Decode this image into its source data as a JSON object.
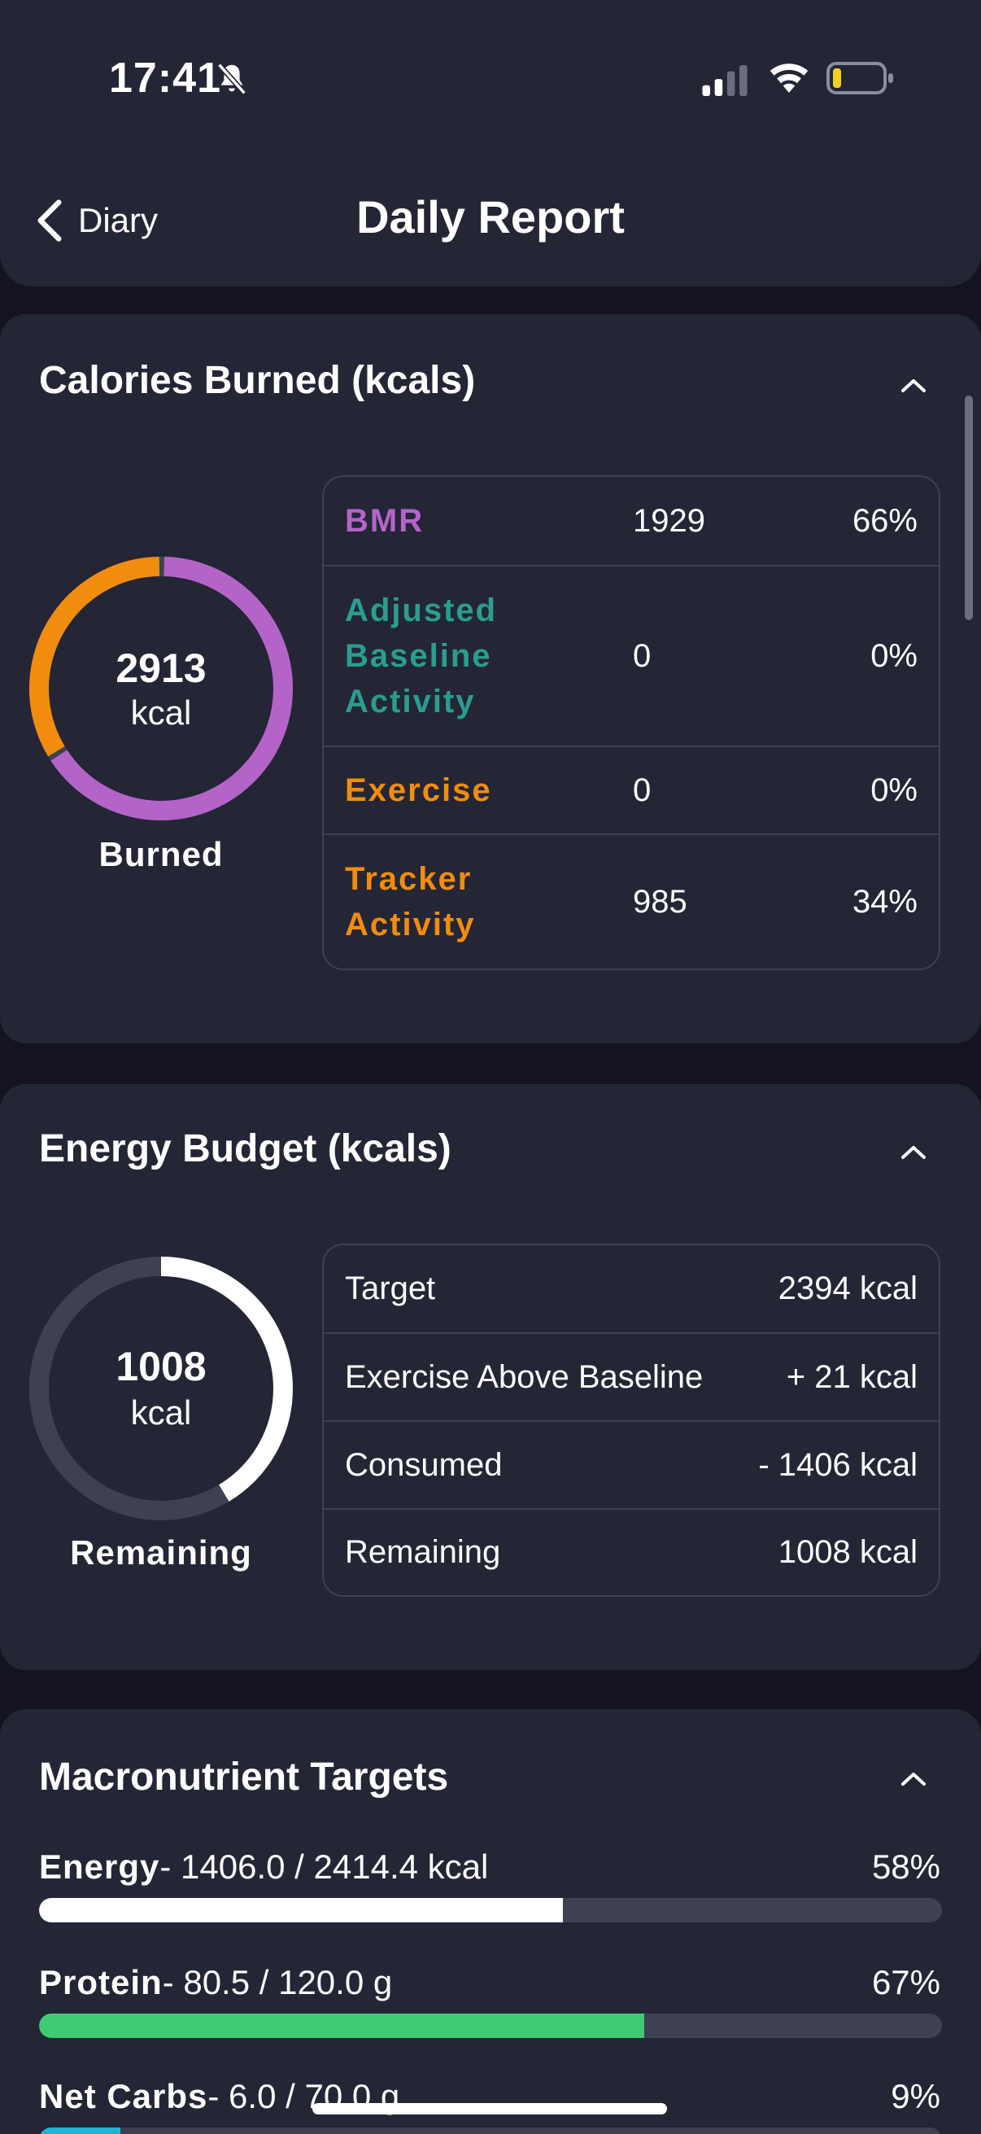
{
  "status_bar": {
    "time": "17:41",
    "bell_icon": "bell-slash-icon",
    "signal_icon": "signal-icon",
    "wifi_icon": "wifi-icon",
    "battery_icon": "battery-low-icon"
  },
  "nav": {
    "back_label": "Diary",
    "title": "Daily Report"
  },
  "calories_burned": {
    "title": "Calories Burned (kcals)",
    "donut": {
      "value": "2913",
      "unit": "kcal",
      "label": "Burned",
      "segments": [
        {
          "name": "BMR",
          "fraction": 0.66,
          "color": "#b464c8"
        },
        {
          "name": "Tracker Activity",
          "fraction": 0.34,
          "color": "#f28c0f"
        }
      ]
    },
    "rows": [
      {
        "name": "BMR",
        "value": "1929",
        "pct": "66%",
        "color": "#b464c8"
      },
      {
        "name": "Adjusted Baseline Activity",
        "value": "0",
        "pct": "0%",
        "color": "#2a9d8f"
      },
      {
        "name": "Exercise",
        "value": "0",
        "pct": "0%",
        "color": "#f28c0f"
      },
      {
        "name": "Tracker Activity",
        "value": "985",
        "pct": "34%",
        "color": "#f28c0f"
      }
    ]
  },
  "energy_budget": {
    "title": "Energy Budget (kcals)",
    "donut": {
      "value": "1008",
      "unit": "kcal",
      "label": "Remaining",
      "remaining_fraction": 0.42
    },
    "rows": [
      {
        "name": "Target",
        "value": "2394 kcal"
      },
      {
        "name": "Exercise Above Baseline",
        "value": "+ 21 kcal"
      },
      {
        "name": "Consumed",
        "value": "- 1406 kcal"
      },
      {
        "name": "Remaining",
        "value": "1008 kcal"
      }
    ]
  },
  "macros": {
    "title": "Macronutrient Targets",
    "items": [
      {
        "name": "Energy",
        "detail": "- 1406.0 / 2414.4 kcal",
        "pct": "58%",
        "fraction": 0.58,
        "color": "#ffffff"
      },
      {
        "name": "Protein",
        "detail": "- 80.5 / 120.0 g",
        "pct": "67%",
        "fraction": 0.67,
        "color": "#3ecb72"
      },
      {
        "name": "Net Carbs",
        "detail": "- 6.0 / 70.0 g",
        "pct": "9%",
        "fraction": 0.09,
        "color": "#1fb5d8"
      }
    ]
  },
  "colors": {
    "background": "#13141f",
    "card": "#242636",
    "border": "#3e4152",
    "ring_track": "#3e4152"
  }
}
